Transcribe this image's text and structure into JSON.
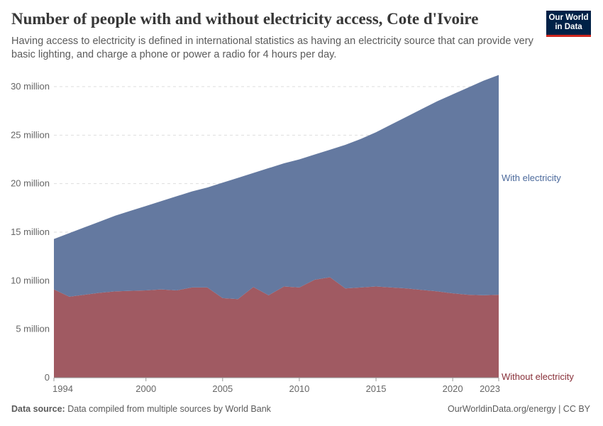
{
  "header": {
    "title": "Number of people with and without electricity access, Cote d'Ivoire",
    "subtitle": "Having access to electricity is defined in international statistics as having an electricity source that can provide very basic lighting, and charge a phone or power a radio for 4 hours per day.",
    "logo": "Our World in Data"
  },
  "footer": {
    "source_label": "Data source:",
    "source_text": "Data compiled from multiple sources by World Bank",
    "credit": "OurWorldinData.org/energy | CC BY"
  },
  "chart_data": {
    "type": "area",
    "stacked": true,
    "title": "Number of people with and without electricity access, Cote d'Ivoire",
    "ylim": [
      0,
      30000000
    ],
    "yticks": [
      0,
      5000000,
      10000000,
      15000000,
      20000000,
      25000000,
      30000000
    ],
    "ytick_labels": [
      "0",
      "5 million",
      "10 million",
      "15 million",
      "20 million",
      "25 million",
      "30 million"
    ],
    "xticks": [
      1994,
      2000,
      2005,
      2010,
      2015,
      2020,
      2023
    ],
    "grid": "horizontal dashed",
    "legend": "right (inline labels)",
    "x": [
      1994,
      1995,
      1996,
      1997,
      1998,
      1999,
      2000,
      2001,
      2002,
      2003,
      2004,
      2005,
      2006,
      2007,
      2008,
      2009,
      2010,
      2011,
      2012,
      2013,
      2014,
      2015,
      2016,
      2017,
      2018,
      2019,
      2020,
      2021,
      2022,
      2023
    ],
    "series": [
      {
        "name": "Without electricity",
        "color": "#a05a62",
        "values_million": [
          9.1,
          8.35,
          8.55,
          8.75,
          8.9,
          8.95,
          9.0,
          9.1,
          9.0,
          9.3,
          9.3,
          8.2,
          8.1,
          9.35,
          8.5,
          9.4,
          9.3,
          10.1,
          10.35,
          9.2,
          9.3,
          9.4,
          9.3,
          9.2,
          9.05,
          8.9,
          8.7,
          8.55,
          8.5,
          8.55
        ]
      },
      {
        "name": "With electricity",
        "color": "#6479a0",
        "values_million": [
          5.2,
          6.55,
          6.95,
          7.35,
          7.8,
          8.25,
          8.7,
          9.1,
          9.7,
          9.9,
          10.3,
          11.9,
          12.5,
          11.75,
          13.1,
          12.7,
          13.2,
          12.9,
          13.15,
          14.8,
          15.3,
          15.9,
          16.8,
          17.7,
          18.65,
          19.6,
          20.5,
          21.35,
          22.1,
          22.65
        ]
      }
    ]
  }
}
